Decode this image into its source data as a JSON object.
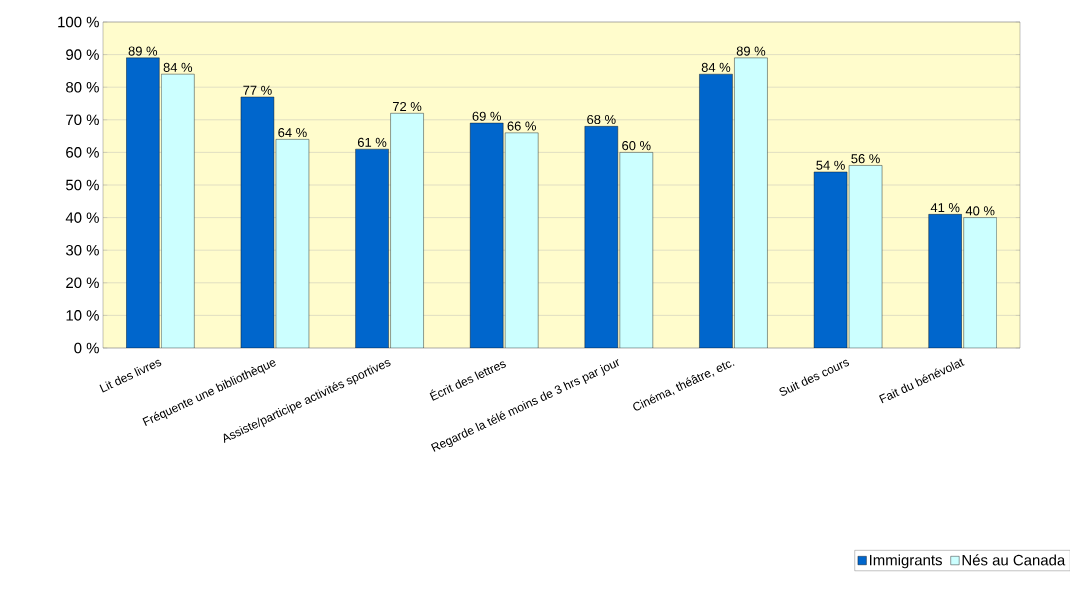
{
  "chart_data": {
    "type": "bar",
    "categories": [
      "Lit des livres",
      "Fréquente une bibliothèque",
      "Assiste/participe activités sportives",
      "Écrit des lettres",
      "Regarde la télé moins de 3 hrs par jour",
      "Cinéma, théâtre, etc.",
      "Suit des cours",
      "Fait du bénévolat"
    ],
    "series": [
      {
        "name": "Immigrants",
        "color": "#0066cc",
        "values": [
          89,
          77,
          61,
          69,
          68,
          84,
          54,
          41
        ],
        "value_labels": [
          "89 %",
          "77 %",
          "61 %",
          "69 %",
          "68 %",
          "84 %",
          "54 %",
          "41 %"
        ]
      },
      {
        "name": "Nés au Canada",
        "color": "#ccffff",
        "values": [
          84,
          64,
          72,
          66,
          60,
          89,
          56,
          40
        ],
        "value_labels": [
          "84 %",
          "64 %",
          "72 %",
          "66 %",
          "60 %",
          "89 %",
          "56 %",
          "40 %"
        ]
      }
    ],
    "ylim": [
      0,
      100
    ],
    "yticks": [
      {
        "value": 0,
        "label": "0 %"
      },
      {
        "value": 10,
        "label": "10 %"
      },
      {
        "value": 20,
        "label": "20 %"
      },
      {
        "value": 30,
        "label": "30 %"
      },
      {
        "value": 40,
        "label": "40 %"
      },
      {
        "value": 50,
        "label": "50 %"
      },
      {
        "value": 60,
        "label": "60 %"
      },
      {
        "value": 70,
        "label": "70 %"
      },
      {
        "value": 80,
        "label": "80 %"
      },
      {
        "value": 90,
        "label": "90 %"
      },
      {
        "value": 100,
        "label": "100 %"
      }
    ],
    "grid": "y",
    "legend": "bottom right"
  }
}
